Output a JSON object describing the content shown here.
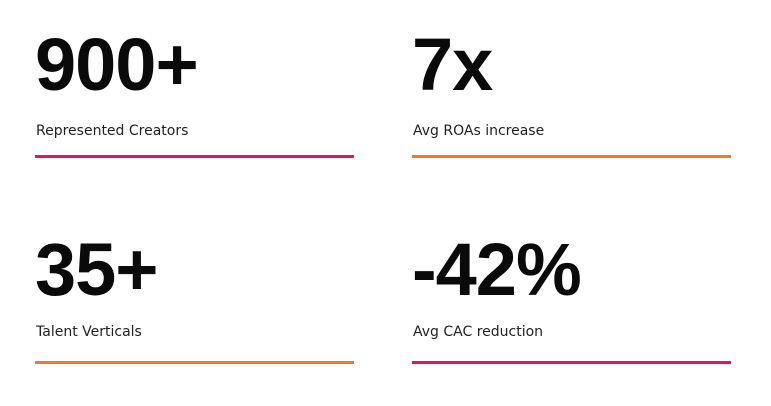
{
  "stats": [
    {
      "value": "900+",
      "label": "Represented Creators",
      "rule_color": "#e0136e"
    },
    {
      "value": "7x",
      "label": "Avg ROAs increase",
      "rule_color": "#ef7a2a"
    },
    {
      "value": "35+",
      "label": "Talent Verticals",
      "rule_color": "#ef7a2a"
    },
    {
      "value": "-42%",
      "label": "Avg CAC reduction",
      "rule_color": "#e0136e"
    }
  ]
}
